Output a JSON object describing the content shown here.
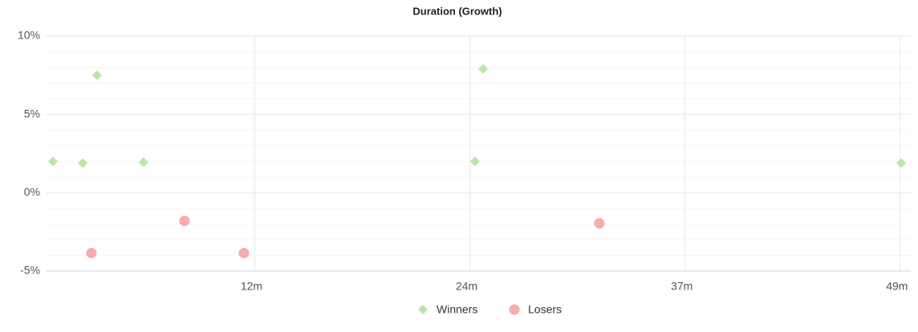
{
  "chart_data": {
    "type": "scatter",
    "title": "Duration (Growth)",
    "xlim": [
      0.35,
      49.6
    ],
    "xticks": [
      {
        "value": 12.25,
        "label": "12m"
      },
      {
        "value": 24.5,
        "label": "24m"
      },
      {
        "value": 36.75,
        "label": "37m"
      },
      {
        "value": 49,
        "label": "49m"
      }
    ],
    "ylim": [
      -5,
      10
    ],
    "yticks": [
      {
        "value": -5,
        "label": "-5%"
      },
      {
        "value": 0,
        "label": "0%"
      },
      {
        "value": 5,
        "label": "5%"
      },
      {
        "value": 10,
        "label": "10%"
      }
    ],
    "y_minor_ticks": [
      -4,
      -3,
      -2,
      -1,
      1,
      2,
      3,
      4,
      6,
      7,
      8,
      9
    ],
    "grid": true,
    "legend": "bottom",
    "series": [
      {
        "name": "Winners",
        "color": "#b8e6a3",
        "marker": "diamond",
        "x": [
          0.76,
          2.45,
          3.27,
          5.92,
          24.79,
          25.25,
          49.05
        ],
        "values": [
          2.0,
          1.9,
          7.5,
          1.95,
          2.0,
          7.9,
          1.9
        ]
      },
      {
        "name": "Losers",
        "color": "#f7abab",
        "marker": "circle",
        "x": [
          2.95,
          8.25,
          11.63,
          31.87
        ],
        "values": [
          -3.85,
          -1.8,
          -3.85,
          -1.95
        ]
      }
    ]
  }
}
